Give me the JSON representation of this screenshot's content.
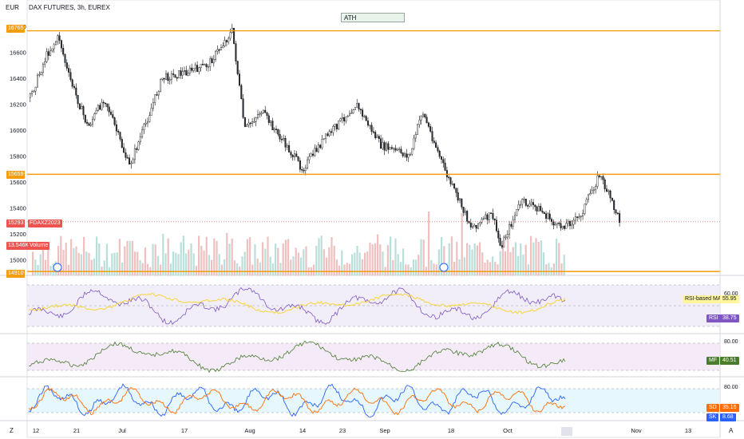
{
  "header": {
    "currency": "EUR",
    "title": "DAX FUTURES, 3h, EUREX"
  },
  "annotation": "ATH",
  "price_axis_ticks": [
    "16800",
    "16600",
    "16400",
    "16200",
    "16000",
    "15800",
    "15600",
    "15400",
    "15200",
    "15000"
  ],
  "level_lines": [
    {
      "label": "16765",
      "value": 16765,
      "color": "#f59d0e"
    },
    {
      "label": "15659",
      "value": 15659,
      "color": "#f59d0e"
    },
    {
      "label": "14910",
      "value": 14910,
      "color": "#f59d0e"
    }
  ],
  "left_badges": {
    "price": "15293",
    "symbol": "FDAXZ2023",
    "volume_value": "13.546K",
    "volume_label": "Volume"
  },
  "rsi": {
    "ma_label": "RSI-based MA",
    "ma_value": "55.95",
    "label": "RSI",
    "value": "38.75",
    "tick": "60.00"
  },
  "mf": {
    "label": "MF",
    "value": "40.51",
    "tick": "80.00"
  },
  "stoch": {
    "d_label": "SD",
    "d_value": "35.16",
    "k_label": "SK",
    "k_value": "8.68",
    "tick": "80.00"
  },
  "time_axis": [
    "12",
    "21",
    "Jul",
    "17",
    "Aug",
    "14",
    "23",
    "Sep",
    "18",
    "Oct",
    "16",
    "Nov",
    "13"
  ],
  "axis_buttons": {
    "left": "Z",
    "right": "A"
  },
  "colors": {
    "up": "#26a69a",
    "down": "#ef5350",
    "level": "#f59d0e",
    "rsi_line": "#7e57c2",
    "rsi_ma": "#f5d63b",
    "mf_line": "#4a7c2e",
    "stoch_k": "#2962ff",
    "stoch_d": "#ff6d00"
  },
  "chart_data": {
    "type": "candlestick",
    "title": "DAX FUTURES, 3h, EUREX",
    "ylabel": "EUR",
    "ylim": [
      14880,
      16830
    ],
    "x_range": [
      "2023-06-12",
      "2023-11-13"
    ],
    "approx_close_path": [
      {
        "x": "2023-06-12",
        "y": 16250
      },
      {
        "x": "2023-06-16",
        "y": 16580
      },
      {
        "x": "2023-06-19",
        "y": 16720
      },
      {
        "x": "2023-06-21",
        "y": 16450
      },
      {
        "x": "2023-06-26",
        "y": 16020
      },
      {
        "x": "2023-06-30",
        "y": 16250
      },
      {
        "x": "2023-07-06",
        "y": 15720
      },
      {
        "x": "2023-07-10",
        "y": 16050
      },
      {
        "x": "2023-07-14",
        "y": 16400
      },
      {
        "x": "2023-07-20",
        "y": 16450
      },
      {
        "x": "2023-07-25",
        "y": 16500
      },
      {
        "x": "2023-07-31",
        "y": 16765
      },
      {
        "x": "2023-08-03",
        "y": 16000
      },
      {
        "x": "2023-08-07",
        "y": 16150
      },
      {
        "x": "2023-08-17",
        "y": 15700
      },
      {
        "x": "2023-08-22",
        "y": 15920
      },
      {
        "x": "2023-08-30",
        "y": 16200
      },
      {
        "x": "2023-09-05",
        "y": 15880
      },
      {
        "x": "2023-09-12",
        "y": 15800
      },
      {
        "x": "2023-09-15",
        "y": 16150
      },
      {
        "x": "2023-09-21",
        "y": 15650
      },
      {
        "x": "2023-09-27",
        "y": 15250
      },
      {
        "x": "2023-10-02",
        "y": 15350
      },
      {
        "x": "2023-10-04",
        "y": 15100
      },
      {
        "x": "2023-10-09",
        "y": 15450
      },
      {
        "x": "2023-10-13",
        "y": 15400
      },
      {
        "x": "2023-10-18",
        "y": 15250
      },
      {
        "x": "2023-10-23",
        "y": 15320
      },
      {
        "x": "2023-10-28",
        "y": 15660
      },
      {
        "x": "2023-11-02",
        "y": 15293
      }
    ],
    "horizontal_levels": [
      16765,
      15659,
      14910
    ],
    "indicators": {
      "RSI": {
        "last": 38.75,
        "ma_last": 55.95
      },
      "MF": {
        "last": 40.51
      },
      "Stoch": {
        "k_last": 8.68,
        "d_last": 35.16
      }
    }
  }
}
